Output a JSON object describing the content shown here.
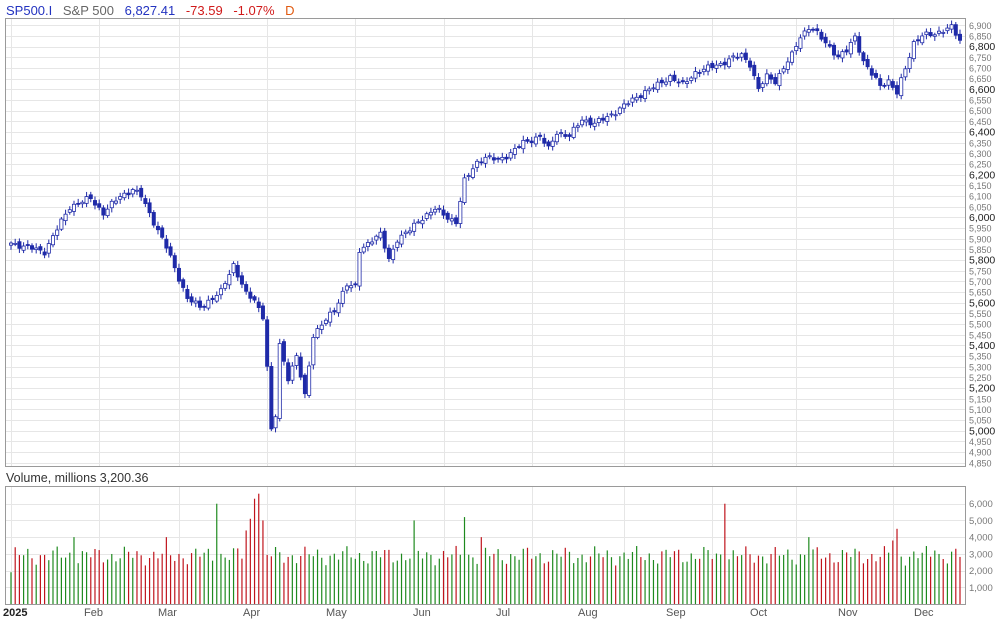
{
  "header": {
    "symbol": "SP500.I",
    "name": "S&P 500",
    "last": "6,827.41",
    "change": "-73.59",
    "change_pct": "-1.07%",
    "interval": "D"
  },
  "volume_panel": {
    "title": "Volume, millions 3,200.36"
  },
  "colors": {
    "candle": "#1f2aa8",
    "up_volume": "#1e8a1e",
    "down_volume": "#c0141c",
    "header_blue": "#2333c0",
    "header_red": "#d01a1a",
    "header_orange": "#e05a10",
    "grid": "#e6e6e6",
    "border": "#9a9a9a"
  },
  "chart_data": [
    {
      "type": "candlestick",
      "title": "",
      "series_name": "SP500.I",
      "x_labels": [
        "2025",
        "Feb",
        "Mar",
        "Apr",
        "May",
        "Jun",
        "Jul",
        "Aug",
        "Sep",
        "Oct",
        "Nov",
        "Dec"
      ],
      "y_ticks": [
        4850,
        4900,
        4950,
        5000,
        5050,
        5100,
        5150,
        5200,
        5250,
        5300,
        5350,
        5400,
        5450,
        5500,
        5550,
        5600,
        5650,
        5700,
        5750,
        5800,
        5850,
        5900,
        5950,
        6000,
        6050,
        6100,
        6150,
        6200,
        6250,
        6300,
        6350,
        6400,
        6450,
        6500,
        6550,
        6600,
        6650,
        6700,
        6750,
        6800,
        6850,
        6900
      ],
      "y_tick_labels": [
        "4,850",
        "4,900",
        "4,950",
        "5,000",
        "5,050",
        "5,100",
        "5,150",
        "5,200",
        "5,250",
        "5,300",
        "5,350",
        "5,400",
        "5,450",
        "5,500",
        "5,550",
        "5,600",
        "5,650",
        "5,700",
        "5,750",
        "5,800",
        "5,850",
        "5,900",
        "5,950",
        "6,000",
        "6,050",
        "6,100",
        "6,150",
        "6,200",
        "6,250",
        "6,300",
        "6,350",
        "6,400",
        "6,450",
        "6,500",
        "6,550",
        "6,600",
        "6,650",
        "6,700",
        "6,750",
        "6,800",
        "6,850",
        "6,900"
      ],
      "bold_ticks": [
        5000,
        5200,
        5400,
        5600,
        5800,
        6000,
        6200,
        6400,
        6600,
        6800
      ],
      "ylim": [
        4835,
        6930
      ],
      "grid": true,
      "close_anchors": [
        [
          0,
          5880
        ],
        [
          8,
          5840
        ],
        [
          14,
          6050
        ],
        [
          19,
          6090
        ],
        [
          22,
          6020
        ],
        [
          26,
          6100
        ],
        [
          29,
          6130
        ],
        [
          31,
          6100
        ],
        [
          37,
          5860
        ],
        [
          42,
          5620
        ],
        [
          45,
          5580
        ],
        [
          50,
          5650
        ],
        [
          53,
          5780
        ],
        [
          56,
          5640
        ],
        [
          58,
          5610
        ],
        [
          60,
          5540
        ],
        [
          61,
          5300
        ],
        [
          62,
          5000
        ],
        [
          63,
          5070
        ],
        [
          64,
          5400
        ],
        [
          66,
          5250
        ],
        [
          68,
          5350
        ],
        [
          70,
          5160
        ],
        [
          72,
          5450
        ],
        [
          74,
          5500
        ],
        [
          77,
          5560
        ],
        [
          79,
          5650
        ],
        [
          80,
          5690
        ],
        [
          82,
          5670
        ],
        [
          83,
          5840
        ],
        [
          86,
          5900
        ],
        [
          88,
          5920
        ],
        [
          90,
          5800
        ],
        [
          92,
          5900
        ],
        [
          95,
          5940
        ],
        [
          98,
          6000
        ],
        [
          101,
          6040
        ],
        [
          104,
          6000
        ],
        [
          106,
          5980
        ],
        [
          108,
          6170
        ],
        [
          111,
          6260
        ],
        [
          113,
          6280
        ],
        [
          116,
          6270
        ],
        [
          119,
          6300
        ],
        [
          122,
          6350
        ],
        [
          126,
          6380
        ],
        [
          128,
          6320
        ],
        [
          130,
          6400
        ],
        [
          133,
          6380
        ],
        [
          136,
          6460
        ],
        [
          139,
          6440
        ],
        [
          142,
          6470
        ],
        [
          145,
          6510
        ],
        [
          148,
          6550
        ],
        [
          151,
          6590
        ],
        [
          154,
          6620
        ],
        [
          157,
          6660
        ],
        [
          160,
          6620
        ],
        [
          163,
          6680
        ],
        [
          166,
          6700
        ],
        [
          169,
          6720
        ],
        [
          171,
          6740
        ],
        [
          174,
          6760
        ],
        [
          176,
          6720
        ],
        [
          178,
          6600
        ],
        [
          180,
          6660
        ],
        [
          182,
          6640
        ],
        [
          184,
          6700
        ],
        [
          186,
          6760
        ],
        [
          188,
          6850
        ],
        [
          190,
          6890
        ],
        [
          191,
          6880
        ],
        [
          193,
          6840
        ],
        [
          195,
          6800
        ],
        [
          197,
          6750
        ],
        [
          199,
          6780
        ],
        [
          201,
          6850
        ],
        [
          203,
          6730
        ],
        [
          205,
          6670
        ],
        [
          207,
          6620
        ],
        [
          209,
          6640
        ],
        [
          211,
          6580
        ],
        [
          213,
          6700
        ],
        [
          215,
          6820
        ],
        [
          217,
          6850
        ],
        [
          220,
          6860
        ],
        [
          222,
          6880
        ],
        [
          224,
          6890
        ],
        [
          226,
          6827
        ]
      ],
      "volume": {
        "unit": "millions",
        "y_ticks": [
          1000,
          2000,
          3000,
          4000,
          5000,
          6000
        ],
        "y_tick_labels": [
          "1,000",
          "2,000",
          "3,000",
          "4,000",
          "5,000",
          "6,000"
        ],
        "ylim": [
          0,
          7000
        ],
        "typical": 2900,
        "spikes": [
          [
            15,
            4000
          ],
          [
            37,
            4000
          ],
          [
            49,
            6000
          ],
          [
            56,
            4400
          ],
          [
            57,
            5100
          ],
          [
            58,
            6300
          ],
          [
            59,
            6600
          ],
          [
            60,
            5000
          ],
          [
            96,
            5000
          ],
          [
            108,
            5200
          ],
          [
            112,
            4000
          ],
          [
            170,
            6000
          ],
          [
            190,
            4000
          ],
          [
            210,
            3800
          ],
          [
            211,
            4500
          ],
          [
            220,
            3200
          ]
        ]
      }
    }
  ]
}
